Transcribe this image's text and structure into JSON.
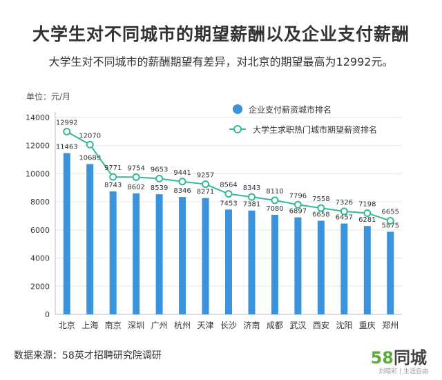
{
  "header": {
    "title": "大学生对不同城市的期望薪酬以及企业支付薪酬",
    "subtitle": "大学生对不同城市的薪酬期望有差异，对北京的期望最高为12992元。"
  },
  "footer": {
    "source": "数据来源：58英才招聘研究院调研",
    "logo_num": "58",
    "logo_text": "同城",
    "watermark": "刘暗彩 | 生涯自由"
  },
  "colors": {
    "bar": "#3b93dc",
    "line": "#34b89a",
    "marker_fill": "#ffffff",
    "grid": "#e6e6e6",
    "text": "#333333"
  },
  "chart_data": {
    "type": "bar",
    "unit_label": "单位：元/月",
    "categories": [
      "北京",
      "上海",
      "南京",
      "深圳",
      "广州",
      "杭州",
      "天津",
      "长沙",
      "济南",
      "成都",
      "武汉",
      "西安",
      "沈阳",
      "重庆",
      "郑州"
    ],
    "series": [
      {
        "name": "企业支付薪资城市排名",
        "type": "bar",
        "values": [
          11463,
          10689,
          8743,
          8602,
          8539,
          8346,
          8271,
          7453,
          7381,
          7080,
          6897,
          6658,
          6457,
          6281,
          5875
        ]
      },
      {
        "name": "大学生求职热门城市期望薪资排名",
        "type": "line",
        "values": [
          12992,
          12070,
          9771,
          9754,
          9653,
          9441,
          9257,
          8564,
          8343,
          8110,
          7796,
          7558,
          7326,
          7198,
          6655
        ]
      }
    ],
    "ylim": [
      0,
      14000
    ],
    "yticks": [
      0,
      2000,
      4000,
      6000,
      8000,
      10000,
      12000,
      14000
    ],
    "legend_position": "top-right"
  }
}
